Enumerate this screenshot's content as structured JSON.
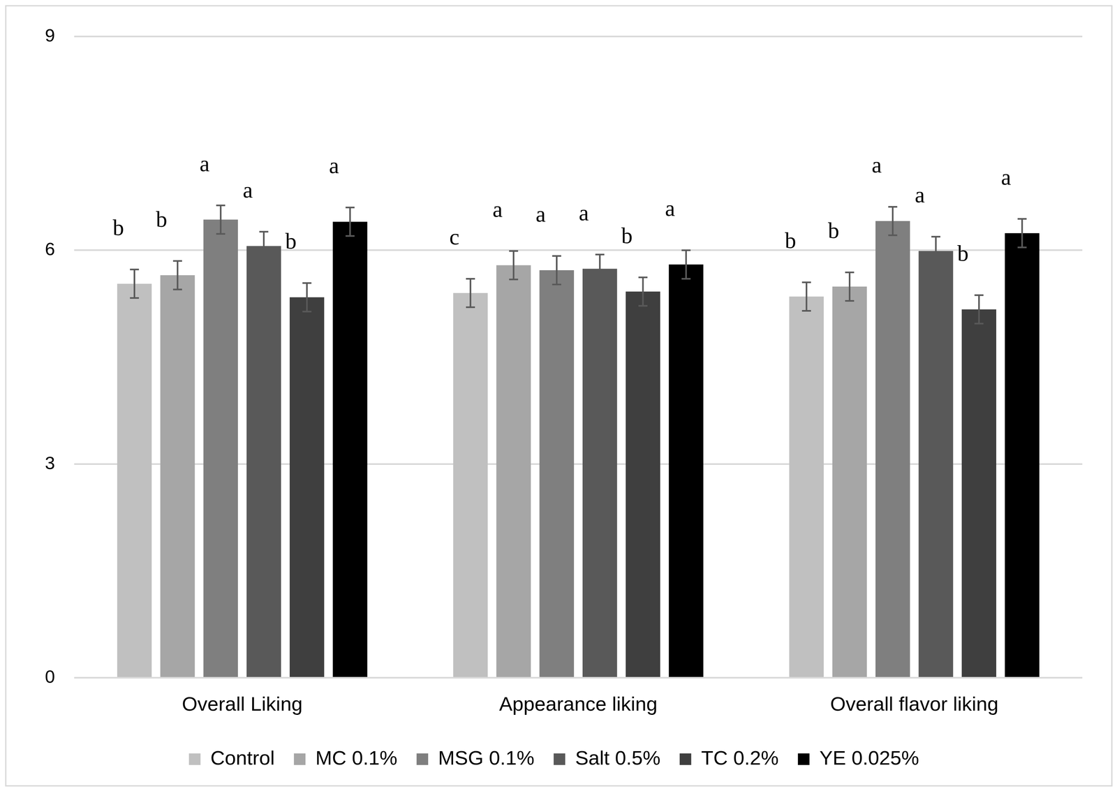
{
  "chart_data": {
    "type": "bar",
    "categories": [
      "Overall Liking",
      "Appearance liking",
      "Overall flavor liking"
    ],
    "series": [
      {
        "name": "Control",
        "color": "#c0c0c0",
        "values": [
          5.53,
          5.4,
          5.35
        ],
        "errors": [
          0.2,
          0.2,
          0.2
        ],
        "letters": [
          "b",
          "c",
          "b"
        ]
      },
      {
        "name": "MC 0.1%",
        "color": "#a6a6a6",
        "values": [
          5.65,
          5.79,
          5.49
        ],
        "errors": [
          0.2,
          0.2,
          0.2
        ],
        "letters": [
          "b",
          "a",
          "b"
        ]
      },
      {
        "name": "MSG 0.1%",
        "color": "#7f7f7f",
        "values": [
          6.43,
          5.72,
          6.41
        ],
        "errors": [
          0.2,
          0.2,
          0.2
        ],
        "letters": [
          "a",
          "a",
          "a"
        ]
      },
      {
        "name": "Salt 0.5%",
        "color": "#595959",
        "values": [
          6.06,
          5.74,
          5.99
        ],
        "errors": [
          0.2,
          0.2,
          0.2
        ],
        "letters": [
          "a",
          "a",
          "a"
        ]
      },
      {
        "name": "TC 0.2%",
        "color": "#3f3f3f",
        "values": [
          5.34,
          5.42,
          5.17
        ],
        "errors": [
          0.2,
          0.2,
          0.2
        ],
        "letters": [
          "b",
          "b",
          "b"
        ]
      },
      {
        "name": "YE 0.025%",
        "color": "#000000",
        "values": [
          6.4,
          5.8,
          6.24
        ],
        "errors": [
          0.2,
          0.2,
          0.2
        ],
        "letters": [
          "a",
          "a",
          "a"
        ]
      }
    ],
    "ylim": [
      0,
      9
    ],
    "yticks": [
      0,
      3,
      6,
      9
    ],
    "grid": true,
    "legend": "bottom"
  }
}
